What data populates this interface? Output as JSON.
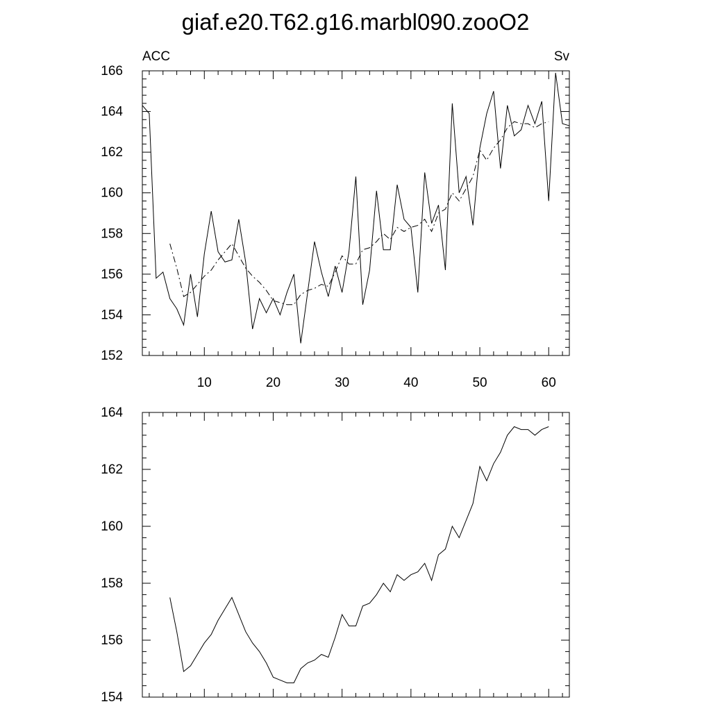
{
  "figure": {
    "title": "giaf.e20.T62.g16.marbl090.zooO2"
  },
  "chart_data": [
    {
      "type": "line",
      "left_label": "ACC",
      "right_label": "Sv",
      "xlim": [
        1,
        63
      ],
      "ylim": [
        152,
        166
      ],
      "xticks": [
        10,
        20,
        30,
        40,
        50,
        60
      ],
      "yticks": [
        152,
        154,
        156,
        158,
        160,
        162,
        164,
        166
      ],
      "line_color": "#000000",
      "grid": false,
      "series": [
        {
          "style": "solid",
          "x": [
            1,
            2,
            3,
            4,
            5,
            6,
            7,
            8,
            9,
            10,
            11,
            12,
            13,
            14,
            15,
            16,
            17,
            18,
            19,
            20,
            21,
            22,
            23,
            24,
            25,
            26,
            27,
            28,
            29,
            30,
            31,
            32,
            33,
            34,
            35,
            36,
            37,
            38,
            39,
            40,
            41,
            42,
            43,
            44,
            45,
            46,
            47,
            48,
            49,
            50,
            51,
            52,
            53,
            54,
            55,
            56,
            57,
            58,
            59,
            60,
            61,
            62,
            63
          ],
          "values": [
            164.3,
            163.9,
            155.8,
            156.1,
            154.8,
            154.3,
            153.5,
            156.0,
            153.9,
            157.0,
            159.1,
            157.1,
            156.6,
            156.7,
            158.7,
            156.6,
            153.3,
            154.8,
            154.1,
            154.8,
            154.0,
            155.1,
            156.0,
            152.6,
            155.1,
            157.6,
            156.1,
            154.9,
            156.4,
            155.1,
            157.1,
            160.8,
            154.5,
            156.2,
            160.1,
            157.2,
            157.2,
            160.4,
            158.7,
            158.3,
            155.1,
            161.0,
            158.5,
            159.4,
            156.2,
            164.4,
            160.0,
            160.8,
            158.4,
            162.2,
            163.9,
            165.0,
            161.2,
            164.3,
            162.8,
            163.1,
            164.3,
            163.4,
            164.5,
            159.6,
            165.9,
            163.4,
            163.3
          ]
        },
        {
          "style": "dashdot",
          "x": [
            5,
            6,
            7,
            8,
            9,
            10,
            11,
            12,
            13,
            14,
            15,
            16,
            17,
            18,
            19,
            20,
            21,
            22,
            23,
            24,
            25,
            26,
            27,
            28,
            29,
            30,
            31,
            32,
            33,
            34,
            35,
            36,
            37,
            38,
            39,
            40,
            41,
            42,
            43,
            44,
            45,
            46,
            47,
            48,
            49,
            50,
            51,
            52,
            53,
            54,
            55,
            56,
            57,
            58,
            59,
            60
          ],
          "values": [
            157.5,
            156.3,
            154.9,
            155.1,
            155.5,
            155.9,
            156.2,
            156.7,
            157.1,
            157.5,
            156.9,
            156.3,
            155.9,
            155.6,
            155.2,
            154.7,
            154.6,
            154.5,
            154.5,
            155.0,
            155.2,
            155.3,
            155.5,
            155.4,
            156.1,
            156.9,
            156.5,
            156.5,
            157.2,
            157.3,
            157.6,
            158.0,
            157.7,
            158.3,
            158.1,
            158.3,
            158.4,
            158.7,
            158.1,
            159.0,
            159.2,
            160.0,
            159.6,
            160.2,
            160.8,
            162.1,
            161.6,
            162.2,
            162.6,
            163.2,
            163.5,
            163.4,
            163.4,
            163.2,
            163.4,
            163.5
          ]
        }
      ]
    },
    {
      "type": "line",
      "xlim": [
        1,
        63
      ],
      "ylim": [
        154,
        164
      ],
      "yticks": [
        154,
        156,
        158,
        160,
        162,
        164
      ],
      "line_color": "#000000",
      "grid": false,
      "series": [
        {
          "style": "solid",
          "x": [
            5,
            6,
            7,
            8,
            9,
            10,
            11,
            12,
            13,
            14,
            15,
            16,
            17,
            18,
            19,
            20,
            21,
            22,
            23,
            24,
            25,
            26,
            27,
            28,
            29,
            30,
            31,
            32,
            33,
            34,
            35,
            36,
            37,
            38,
            39,
            40,
            41,
            42,
            43,
            44,
            45,
            46,
            47,
            48,
            49,
            50,
            51,
            52,
            53,
            54,
            55,
            56,
            57,
            58,
            59,
            60
          ],
          "values": [
            157.5,
            156.3,
            154.9,
            155.1,
            155.5,
            155.9,
            156.2,
            156.7,
            157.1,
            157.5,
            156.9,
            156.3,
            155.9,
            155.6,
            155.2,
            154.7,
            154.6,
            154.5,
            154.5,
            155.0,
            155.2,
            155.3,
            155.5,
            155.4,
            156.1,
            156.9,
            156.5,
            156.5,
            157.2,
            157.3,
            157.6,
            158.0,
            157.7,
            158.3,
            158.1,
            158.3,
            158.4,
            158.7,
            158.1,
            159.0,
            159.2,
            160.0,
            159.6,
            160.2,
            160.8,
            162.1,
            161.6,
            162.2,
            162.6,
            163.2,
            163.5,
            163.4,
            163.4,
            163.2,
            163.4,
            163.5
          ]
        }
      ]
    }
  ]
}
